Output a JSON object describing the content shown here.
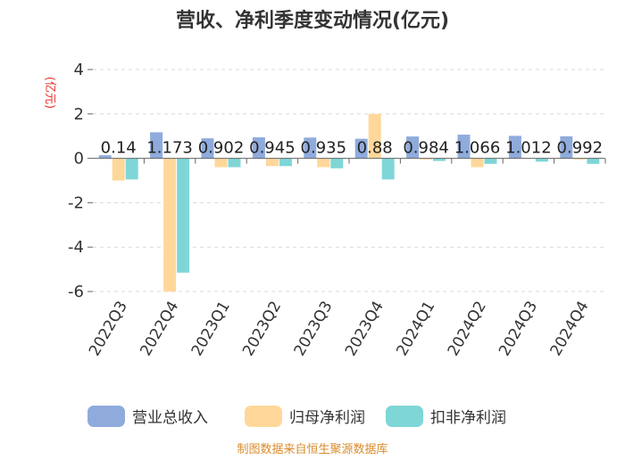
{
  "chart_data": {
    "type": "bar",
    "title": "营收、净利季度变动情况(亿元)",
    "ylabel": "(亿元)",
    "ylim": [
      -6,
      4
    ],
    "yticks": [
      4,
      2,
      0,
      -2,
      -4,
      -6
    ],
    "grid": "horizontal dashed",
    "legend_position": "bottom",
    "categories": [
      "2022Q3",
      "2022Q4",
      "2023Q1",
      "2023Q2",
      "2023Q3",
      "2023Q4",
      "2024Q1",
      "2024Q2",
      "2024Q3",
      "2024Q4"
    ],
    "series": [
      {
        "name": "营业总收入",
        "color": "#8fabdc",
        "values": [
          0.14,
          1.173,
          0.902,
          0.945,
          0.935,
          0.88,
          0.984,
          1.066,
          1.012,
          0.992
        ],
        "labels": [
          "0.14",
          "1.173",
          "0.902",
          "0.945",
          "0.935",
          "0.88",
          "0.984",
          "1.066",
          "1.012",
          "0.992"
        ]
      },
      {
        "name": "归母净利润",
        "color": "#ffd79a",
        "values": [
          -1.0,
          -6.0,
          -0.4,
          -0.35,
          -0.4,
          2.0,
          -0.05,
          -0.4,
          0.0,
          -0.05
        ]
      },
      {
        "name": "扣非净利润",
        "color": "#7fd6d6",
        "values": [
          -0.95,
          -5.15,
          -0.4,
          -0.35,
          -0.45,
          -0.95,
          -0.12,
          -0.25,
          -0.15,
          -0.25
        ]
      }
    ]
  },
  "source": "制图数据来自恒生聚源数据库"
}
